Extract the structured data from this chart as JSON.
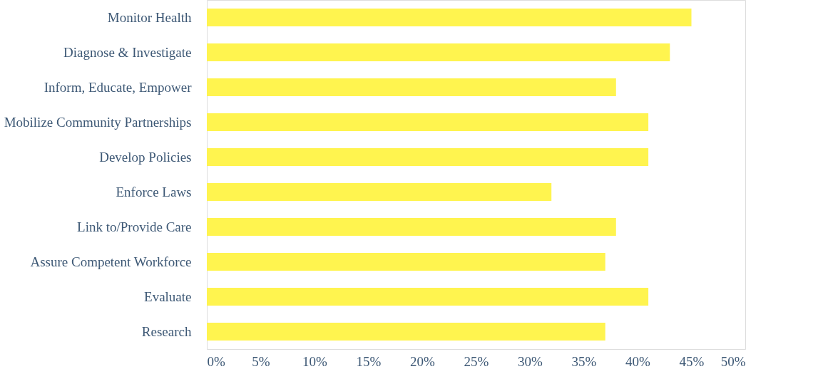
{
  "chart_data": {
    "type": "bar",
    "orientation": "horizontal",
    "categories": [
      "Monitor Health",
      "Diagnose & Investigate",
      "Inform, Educate, Empower",
      "Mobilize Community Partnerships",
      "Develop Policies",
      "Enforce Laws",
      "Link to/Provide Care",
      "Assure Competent Workforce",
      "Evaluate",
      "Research"
    ],
    "values": [
      45,
      43,
      38,
      41,
      41,
      32,
      38,
      37,
      41,
      37
    ],
    "color": "#fff44f",
    "xlim": [
      0,
      50
    ],
    "xticks": [
      {
        "value": 0,
        "label": "0%"
      },
      {
        "value": 5,
        "label": "5%"
      },
      {
        "value": 10,
        "label": "10%"
      },
      {
        "value": 15,
        "label": "15%"
      },
      {
        "value": 20,
        "label": "20%"
      },
      {
        "value": 25,
        "label": "25%"
      },
      {
        "value": 30,
        "label": "30%"
      },
      {
        "value": 35,
        "label": "35%"
      },
      {
        "value": 40,
        "label": "40%"
      },
      {
        "value": 45,
        "label": "45%"
      },
      {
        "value": 50,
        "label": "50%"
      }
    ],
    "grid": false
  }
}
